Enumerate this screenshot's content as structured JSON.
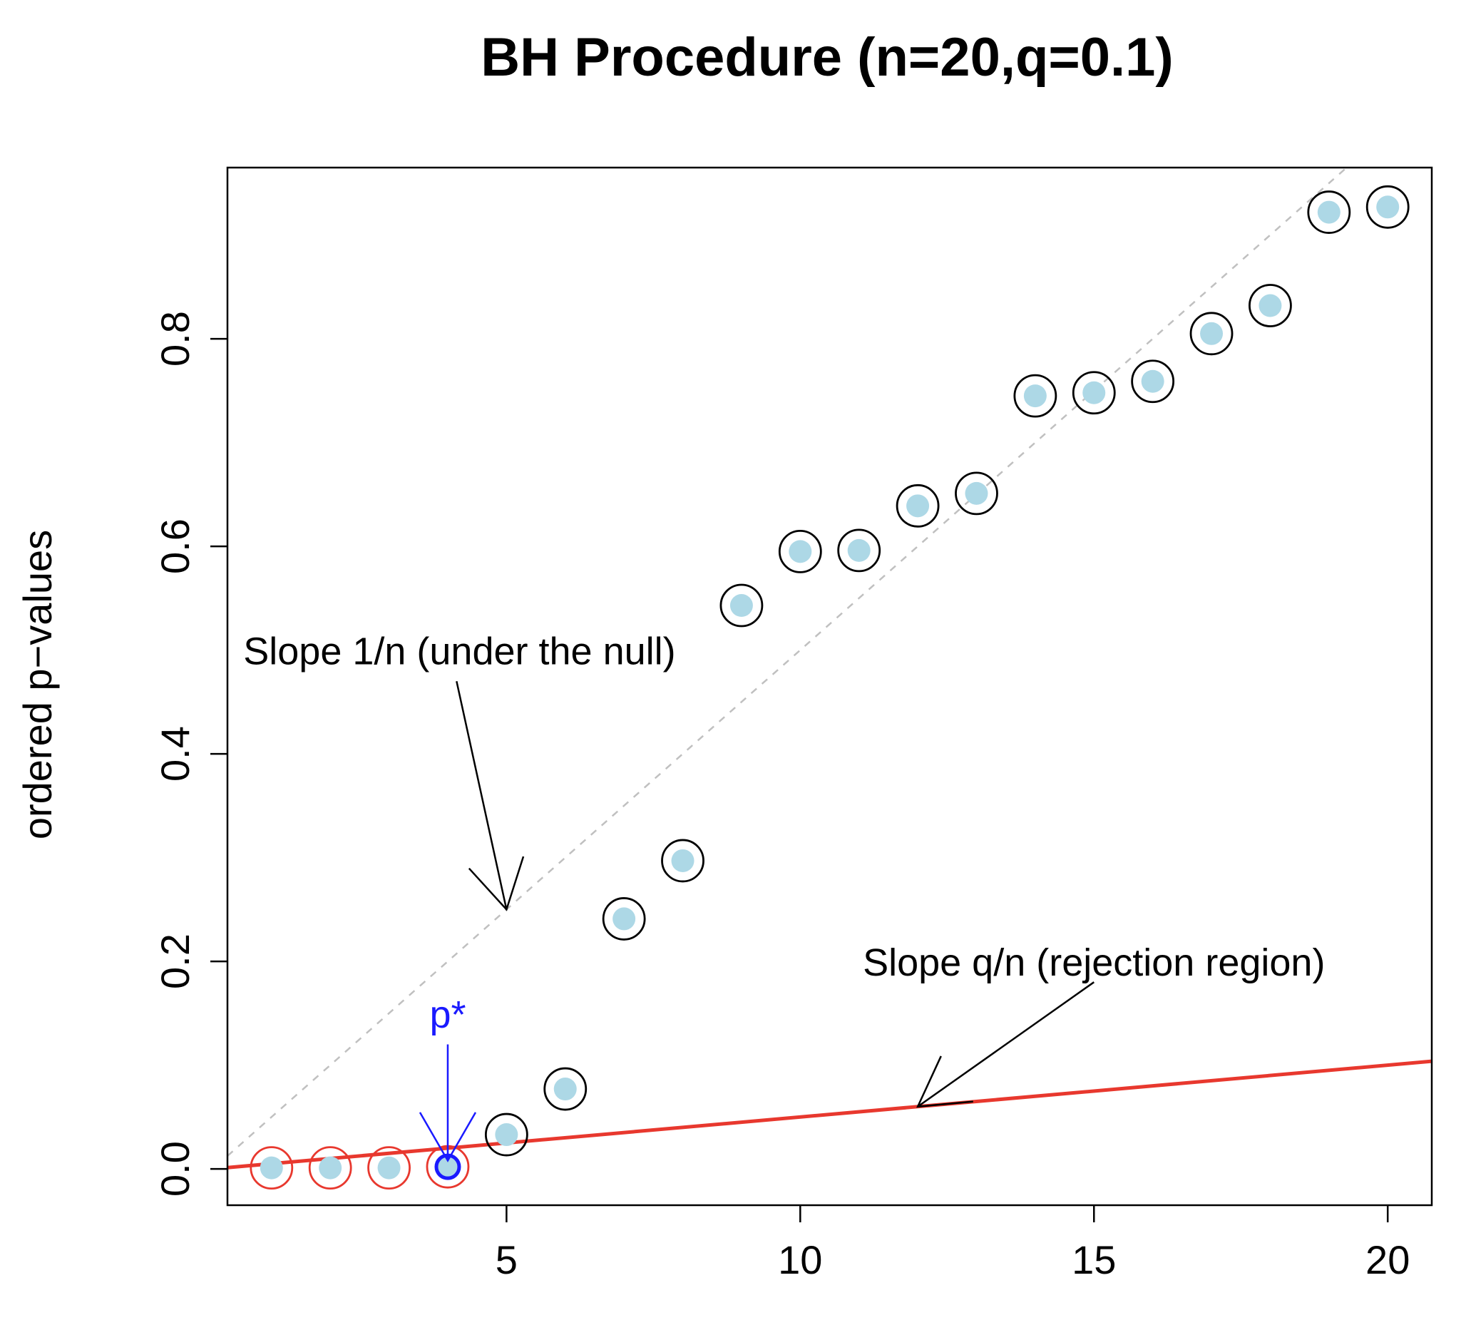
{
  "chart_data": {
    "type": "scatter",
    "title": "BH Procedure (n=20,q=0.1)",
    "xlabel": "",
    "ylabel": "ordered p−values",
    "xlim": [
      0.25,
      20.75
    ],
    "ylim": [
      -0.035,
      0.965
    ],
    "x_ticks": [
      5,
      10,
      15,
      20
    ],
    "x_tick_labels": [
      "5",
      "10",
      "15",
      "20"
    ],
    "y_ticks": [
      0.0,
      0.2,
      0.4,
      0.6,
      0.8
    ],
    "y_tick_labels": [
      "0.0",
      "0.2",
      "0.4",
      "0.6",
      "0.8"
    ],
    "grid": false,
    "n": 20,
    "q": 0.1,
    "points": {
      "x": [
        1,
        2,
        3,
        4,
        5,
        6,
        7,
        8,
        9,
        10,
        11,
        12,
        13,
        14,
        15,
        16,
        17,
        18,
        19,
        20
      ],
      "y": [
        0.001,
        0.001,
        0.001,
        0.002,
        0.033,
        0.077,
        0.241,
        0.297,
        0.543,
        0.595,
        0.596,
        0.639,
        0.651,
        0.745,
        0.748,
        0.759,
        0.805,
        0.832,
        0.922,
        0.927
      ],
      "fill_color": "#add8e6"
    },
    "rejected_count": 4,
    "p_star_index": 4,
    "reference_lines": [
      {
        "name": "null",
        "slope_per_rank": 0.05,
        "color": "#c0c0c0",
        "style": "dashed"
      },
      {
        "name": "rejection",
        "slope_per_rank": 0.005,
        "color": "#e8382e",
        "style": "solid"
      }
    ],
    "annotations": [
      {
        "id": "null_slope",
        "text": "Slope 1/n (under the null)",
        "text_at": [
          4.2,
          0.5
        ],
        "arrow_from": [
          4.15,
          0.47
        ],
        "arrow_to": [
          5.0,
          0.25
        ]
      },
      {
        "id": "rej_slope",
        "text": "Slope q/n (rejection region)",
        "text_at": [
          15.0,
          0.2
        ],
        "arrow_from": [
          15.0,
          0.18
        ],
        "arrow_to": [
          12.0,
          0.06
        ]
      },
      {
        "id": "p_star",
        "text": "p*",
        "text_at": [
          4.0,
          0.15
        ],
        "arrow_from": [
          4.0,
          0.12
        ],
        "arrow_to": [
          4.0,
          0.008
        ]
      }
    ],
    "colors": {
      "rejected_ring": "#e8382e",
      "accepted_ring": "#000000",
      "p_star": "#1a1aff",
      "reject_line": "#e8382e",
      "null_line": "#c0c0c0"
    }
  }
}
